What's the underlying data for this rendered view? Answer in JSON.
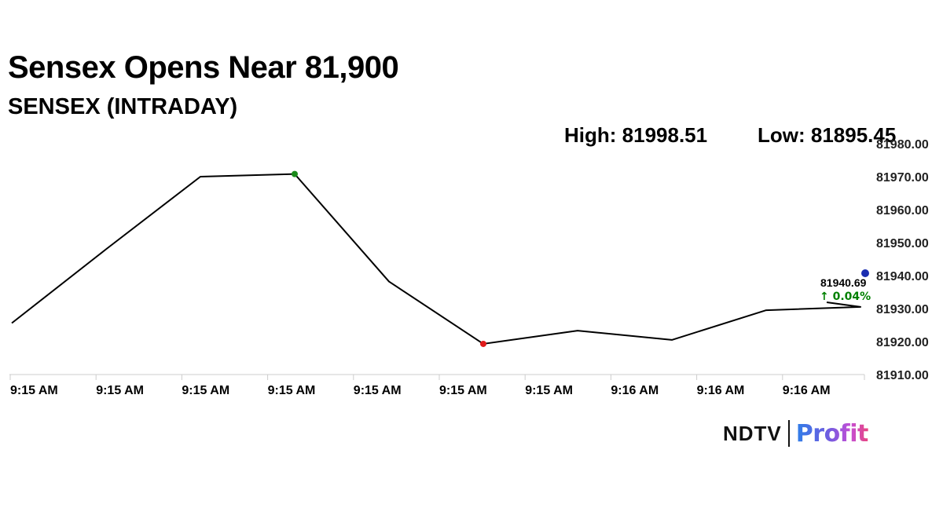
{
  "header": {
    "title": "Sensex Opens Near 81,900",
    "subtitle": "SENSEX (INTRADAY)"
  },
  "stats": {
    "high": "High: 81998.51",
    "low": "Low: 81895.45"
  },
  "logo": {
    "brand": "NDTV",
    "product": "Profit"
  },
  "colors": {
    "line": "#000000",
    "high_marker": "#1a8a1a",
    "low_marker": "#e01a1a",
    "last_marker": "#1a2db0",
    "change_positive": "#008000"
  },
  "chart_data": {
    "type": "line",
    "title": "SENSEX (INTRADAY)",
    "x_tick_labels": [
      "9:15 AM",
      "9:15 AM",
      "9:15 AM",
      "9:15 AM",
      "9:15 AM",
      "9:15 AM",
      "9:15 AM",
      "9:16 AM",
      "9:16 AM",
      "9:16 AM"
    ],
    "y_tick_labels": [
      "81980.00",
      "81970.00",
      "81960.00",
      "81950.00",
      "81940.00",
      "81930.00",
      "81920.00",
      "81910.00"
    ],
    "ylim": [
      81910,
      81980
    ],
    "series": [
      {
        "values": [
          81925.6,
          81948.0,
          81970.0,
          81970.8,
          81938.2,
          81919.3,
          81923.3,
          81920.5,
          81929.5,
          81930.5,
          81940.69
        ]
      }
    ],
    "high_point_index": 3,
    "low_point_index": 5,
    "last_value": "81940.69",
    "change": "↑ 0.04%",
    "grid": false,
    "legend": "none"
  }
}
